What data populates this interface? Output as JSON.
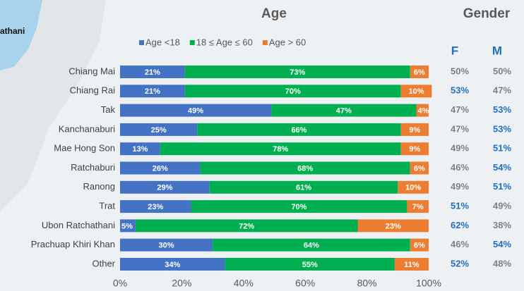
{
  "chart_data": {
    "type": "stacked-bar-horizontal",
    "title": "Age",
    "map_label": "athani",
    "categories": [
      "Chiang Mai",
      "Chiang Rai",
      "Tak",
      "Kanchanaburi",
      "Mae Hong Son",
      "Ratchaburi",
      "Ranong",
      "Trat",
      "Ubon Ratchathani",
      "Prachuap Khiri Khan",
      "Other"
    ],
    "series": [
      {
        "name": "Age <18",
        "color": "#4472c4",
        "values": [
          21,
          21,
          49,
          25,
          13,
          26,
          29,
          23,
          5,
          30,
          34
        ],
        "value_labels": [
          "21%",
          "21%",
          "49%",
          "25%",
          "13%",
          "26%",
          "29%",
          "23%",
          "5%",
          "30%",
          "34%"
        ]
      },
      {
        "name": "18 ≤ Age ≤ 60",
        "color": "#00b050",
        "values": [
          73,
          70,
          47,
          66,
          78,
          68,
          61,
          70,
          72,
          64,
          55
        ],
        "value_labels": [
          "73%",
          "70%",
          "47%",
          "66%",
          "78%",
          "68%",
          "61%",
          "70%",
          "72%",
          "64%",
          "55%"
        ]
      },
      {
        "name": "Age > 60",
        "color": "#ed7d31",
        "values": [
          6,
          10,
          4,
          9,
          9,
          6,
          10,
          7,
          23,
          6,
          11
        ],
        "value_labels": [
          "6%",
          "10%",
          "4%",
          "9%",
          "9%",
          "6%",
          "10%",
          "7%",
          "23%",
          "6%",
          "11%"
        ]
      }
    ],
    "xlim": [
      0,
      100
    ],
    "xticks": [
      {
        "value": 0,
        "label": "0%"
      },
      {
        "value": 20,
        "label": "20%"
      },
      {
        "value": 40,
        "label": "40%"
      },
      {
        "value": 60,
        "label": "60%"
      },
      {
        "value": 80,
        "label": "80%"
      },
      {
        "value": 100,
        "label": "100%"
      }
    ],
    "legend": "top",
    "gender": {
      "title": "Gender",
      "higher_color": "#1f6fbf",
      "lower_color": "#808080",
      "columns": [
        {
          "name": "F",
          "values": [
            50,
            53,
            47,
            47,
            49,
            46,
            49,
            51,
            62,
            46,
            52
          ],
          "value_labels": [
            "50%",
            "53%",
            "47%",
            "47%",
            "49%",
            "46%",
            "49%",
            "51%",
            "62%",
            "46%",
            "52%"
          ]
        },
        {
          "name": "M",
          "values": [
            50,
            47,
            53,
            53,
            51,
            54,
            51,
            49,
            38,
            54,
            48
          ],
          "value_labels": [
            "50%",
            "47%",
            "53%",
            "53%",
            "51%",
            "54%",
            "51%",
            "49%",
            "38%",
            "54%",
            "48%"
          ]
        }
      ]
    }
  }
}
